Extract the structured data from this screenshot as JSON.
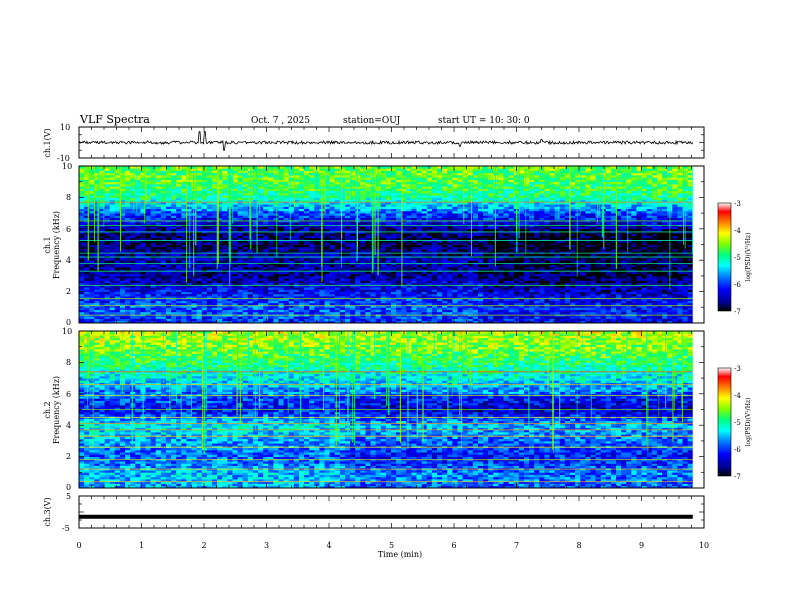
{
  "header": {
    "title": "VLF Spectra",
    "date": "Oct. 7 , 2025",
    "station": "station=OUJ",
    "start": "start  UT  =   10: 30: 0"
  },
  "chart_data": [
    {
      "type": "line",
      "name": "ch1-waveform",
      "ylabel": "ch.1(V)",
      "ylim": [
        -10,
        10
      ],
      "ytick_labels": [
        "10",
        "-10"
      ],
      "baseline": 0,
      "noise_amplitude_v": 1,
      "spikes": [
        {
          "t": 1.93,
          "v": 7
        },
        {
          "t": 2.01,
          "v": 7
        },
        {
          "t": 2.32,
          "v": -5
        },
        {
          "t": 6.1,
          "v": -2.5
        },
        {
          "t": 7.4,
          "v": 2
        }
      ]
    },
    {
      "type": "heatmap",
      "name": "ch1-spectrogram",
      "ylabel": "ch.1",
      "ylabel2": "Frequency (kHz)",
      "ylim": [
        0,
        10
      ],
      "ytick_labels": [
        "0",
        "2",
        "4",
        "6",
        "8",
        "10"
      ],
      "data_xlim_min": [
        0,
        9.82
      ],
      "colorbar": {
        "label": "log(PSD)(V²/Hz)",
        "ticks": [
          "-3",
          "-4",
          "-5",
          "-6",
          "-7"
        ],
        "range": [
          -7,
          -3
        ]
      },
      "freq_profile": [
        {
          "f": 0.0,
          "v": -6.0
        },
        {
          "f": 1.0,
          "v": -5.9
        },
        {
          "f": 2.0,
          "v": -6.2
        },
        {
          "f": 3.0,
          "v": -6.6
        },
        {
          "f": 4.0,
          "v": -6.5
        },
        {
          "f": 5.0,
          "v": -6.8
        },
        {
          "f": 6.0,
          "v": -6.6
        },
        {
          "f": 7.0,
          "v": -5.9
        },
        {
          "f": 8.0,
          "v": -5.0
        },
        {
          "f": 9.0,
          "v": -4.7
        },
        {
          "f": 10.0,
          "v": -4.6
        }
      ],
      "transition_min": 6.5,
      "lines_khz": [
        0.5,
        1.1,
        1.55,
        2.4,
        3.3,
        3.8,
        4.2,
        4.45,
        5.25,
        5.8,
        6.2,
        6.5,
        7.7
      ]
    },
    {
      "type": "heatmap",
      "name": "ch2-spectrogram",
      "ylabel": "ch.2",
      "ylabel2": "Frequency (kHz)",
      "ylim": [
        0,
        10
      ],
      "ytick_labels": [
        "0",
        "2",
        "4",
        "6",
        "8",
        "10"
      ],
      "data_xlim_min": [
        0,
        9.82
      ],
      "colorbar": {
        "label": "log(PSD)(V²/Hz)",
        "ticks": [
          "-3",
          "-4",
          "-5",
          "-6",
          "-7"
        ],
        "range": [
          -7,
          -3
        ]
      },
      "freq_profile": [
        {
          "f": 0.0,
          "v": -5.6
        },
        {
          "f": 1.0,
          "v": -5.5
        },
        {
          "f": 2.0,
          "v": -5.9
        },
        {
          "f": 3.0,
          "v": -5.6
        },
        {
          "f": 4.0,
          "v": -5.3
        },
        {
          "f": 5.0,
          "v": -6.2
        },
        {
          "f": 6.0,
          "v": -5.8
        },
        {
          "f": 7.0,
          "v": -5.3
        },
        {
          "f": 8.0,
          "v": -4.9
        },
        {
          "f": 9.0,
          "v": -4.5
        },
        {
          "f": 10.0,
          "v": -4.3
        }
      ],
      "transition_min": 4.35,
      "lines_khz": [
        0.4,
        1.2,
        1.8,
        2.6,
        3.3,
        3.7,
        4.1,
        4.5,
        5.0,
        5.9,
        6.6,
        7.4
      ]
    },
    {
      "type": "line",
      "name": "ch3-waveform",
      "ylabel": "ch.3(V)",
      "ylim": [
        -5,
        5
      ],
      "ytick_labels": [
        "5",
        "-5"
      ],
      "baseline": -1.5,
      "data_xlim_min": [
        0,
        9.82
      ]
    }
  ],
  "xaxis": {
    "xlabel": "Time (min)",
    "xlim": [
      0,
      10
    ],
    "tick_labels": [
      "0",
      "1",
      "2",
      "3",
      "4",
      "5",
      "6",
      "7",
      "8",
      "9",
      "10"
    ]
  },
  "colors": {
    "colormap": [
      "#000000",
      "#00008f",
      "#0000ff",
      "#0080ff",
      "#00ffff",
      "#00ff80",
      "#80ff00",
      "#ffff00",
      "#ff8000",
      "#ff0000",
      "#ffffff"
    ]
  }
}
